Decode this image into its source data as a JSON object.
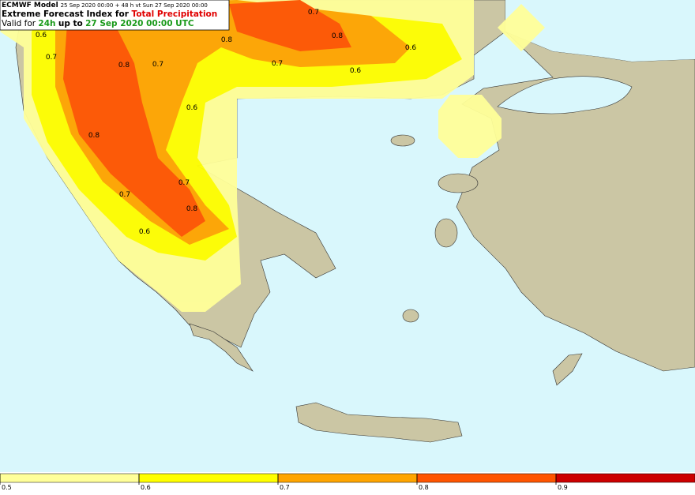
{
  "header": {
    "model": "ECMWF Model",
    "run": "25 Sep 2020 00:00 + 48 h vt Sun 27 Sep 2020 00:00",
    "index_prefix": "Extreme Forecast Index for",
    "parameter": "Total Precipitation",
    "valid_prefix": "Valid for",
    "period": "24h",
    "up_to": "up to",
    "valid_time": "27 Sep 2020 00:00 UTC"
  },
  "contour_labels": [
    "0.6",
    "0.7",
    "0.8",
    "0.7",
    "0.6",
    "0.8",
    "0.7",
    "0.7",
    "0.8",
    "0.6",
    "0.7",
    "0.8",
    "0.8",
    "0.7",
    "0.6",
    "0.6"
  ],
  "colorbar": {
    "ticks": [
      0.5,
      0.6,
      0.7,
      0.8,
      0.9
    ],
    "colors": [
      "#ffff99",
      "#ffff00",
      "#ffa500",
      "#ff5500",
      "#cc0000"
    ]
  }
}
